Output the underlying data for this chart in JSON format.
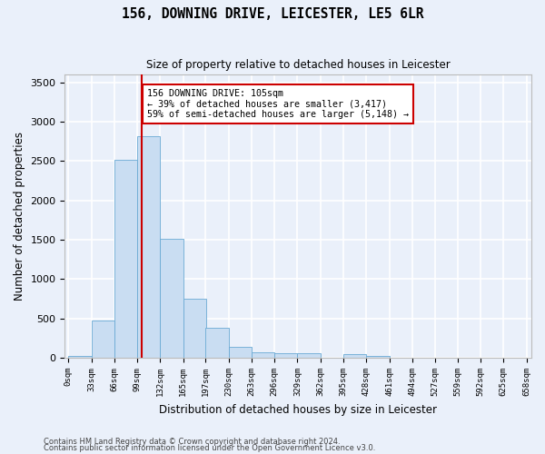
{
  "title": "156, DOWNING DRIVE, LEICESTER, LE5 6LR",
  "subtitle": "Size of property relative to detached houses in Leicester",
  "xlabel": "Distribution of detached houses by size in Leicester",
  "ylabel": "Number of detached properties",
  "bar_color": "#c9ddf2",
  "bar_edge_color": "#6aaad4",
  "background_color": "#eaf0fa",
  "grid_color": "#ffffff",
  "property_line_value": 105,
  "property_line_color": "#cc0000",
  "annotation_text": "156 DOWNING DRIVE: 105sqm\n← 39% of detached houses are smaller (3,417)\n59% of semi-detached houses are larger (5,148) →",
  "annotation_box_color": "#ffffff",
  "annotation_box_edge": "#cc0000",
  "footnote1": "Contains HM Land Registry data © Crown copyright and database right 2024.",
  "footnote2": "Contains public sector information licensed under the Open Government Licence v3.0.",
  "bin_edges": [
    0,
    33,
    66,
    99,
    132,
    165,
    197,
    230,
    263,
    296,
    329,
    362,
    395,
    428,
    461,
    494,
    527,
    559,
    592,
    625,
    658
  ],
  "bin_labels": [
    "0sqm",
    "33sqm",
    "66sqm",
    "99sqm",
    "132sqm",
    "165sqm",
    "197sqm",
    "230sqm",
    "263sqm",
    "296sqm",
    "329sqm",
    "362sqm",
    "395sqm",
    "428sqm",
    "461sqm",
    "494sqm",
    "527sqm",
    "559sqm",
    "592sqm",
    "625sqm",
    "658sqm"
  ],
  "counts": [
    20,
    470,
    2510,
    2820,
    1510,
    750,
    380,
    140,
    75,
    55,
    55,
    0,
    50,
    20,
    0,
    0,
    0,
    0,
    0,
    0
  ],
  "ylim": [
    0,
    3600
  ],
  "yticks": [
    0,
    500,
    1000,
    1500,
    2000,
    2500,
    3000,
    3500
  ],
  "xlim": [
    -5,
    665
  ]
}
